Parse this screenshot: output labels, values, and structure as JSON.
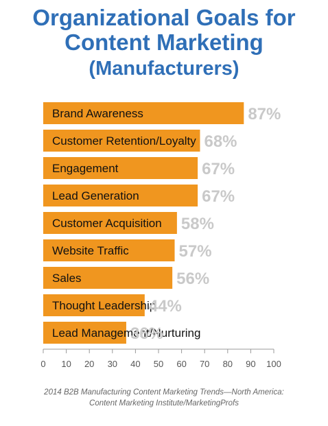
{
  "chart_data": {
    "type": "bar",
    "orientation": "horizontal",
    "title_lines": [
      "Organizational Goals for",
      "Content Marketing"
    ],
    "subtitle": "(Manufacturers)",
    "categories": [
      "Brand Awareness",
      "Customer Retention/Loyalty",
      "Engagement",
      "Lead Generation",
      "Customer Acquisition",
      "Website Traffic",
      "Sales",
      "Thought Leadership",
      "Lead Management/Nurturing"
    ],
    "values": [
      87,
      68,
      67,
      67,
      58,
      57,
      56,
      44,
      36
    ],
    "value_labels": [
      "87%",
      "68%",
      "67%",
      "67%",
      "58%",
      "57%",
      "56%",
      "44%",
      "36%"
    ],
    "xlim": [
      0,
      100
    ],
    "x_ticks": [
      0,
      10,
      20,
      30,
      40,
      50,
      60,
      70,
      80,
      90,
      100
    ],
    "grid": false,
    "colors": {
      "bar": "#f0961f",
      "title": "#2f6fb7",
      "value_label": "#c9c9c9",
      "axis": "#999999"
    }
  },
  "source_lines": [
    "2014 B2B Manufacturing Content Marketing Trends—North America:",
    "Content Marketing Institute/MarketingProfs"
  ]
}
